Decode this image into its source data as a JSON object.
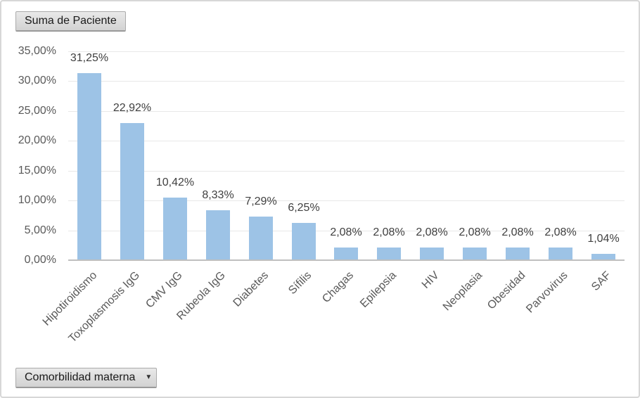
{
  "field_buttons": {
    "value_field_label": "Suma de Paciente",
    "category_field_label": "Comorbilidad materna",
    "dropdown_icon": "▼"
  },
  "chart_data": {
    "type": "bar",
    "title": "",
    "xlabel": "",
    "ylabel": "",
    "legend": "none",
    "grid": true,
    "categories": [
      "Hipotiroidismo",
      "Toxoplasmosis IgG",
      "CMV IgG",
      "Rubeola IgG",
      "Diabetes",
      "Sífilis",
      "Chagas",
      "Epilepsia",
      "HIV",
      "Neoplasia",
      "Obesidad",
      "Parvovirus",
      "SAF"
    ],
    "values": [
      31.25,
      22.92,
      10.42,
      8.33,
      7.29,
      6.25,
      2.08,
      2.08,
      2.08,
      2.08,
      2.08,
      2.08,
      1.04
    ],
    "data_labels": [
      "31,25%",
      "22,92%",
      "10,42%",
      "8,33%",
      "7,29%",
      "6,25%",
      "2,08%",
      "2,08%",
      "2,08%",
      "2,08%",
      "2,08%",
      "2,08%",
      "1,04%"
    ],
    "y_axis": {
      "min": 0,
      "max": 35,
      "step": 5,
      "tick_labels": [
        "0,00%",
        "5,00%",
        "10,00%",
        "15,00%",
        "20,00%",
        "25,00%",
        "30,00%",
        "35,00%"
      ]
    },
    "colors": {
      "bar_fill": "#9DC3E6",
      "gridline": "#E8E8E8",
      "axis_line": "#BFBFBF",
      "data_label_text": "#404040",
      "axis_text": "#595959"
    }
  }
}
